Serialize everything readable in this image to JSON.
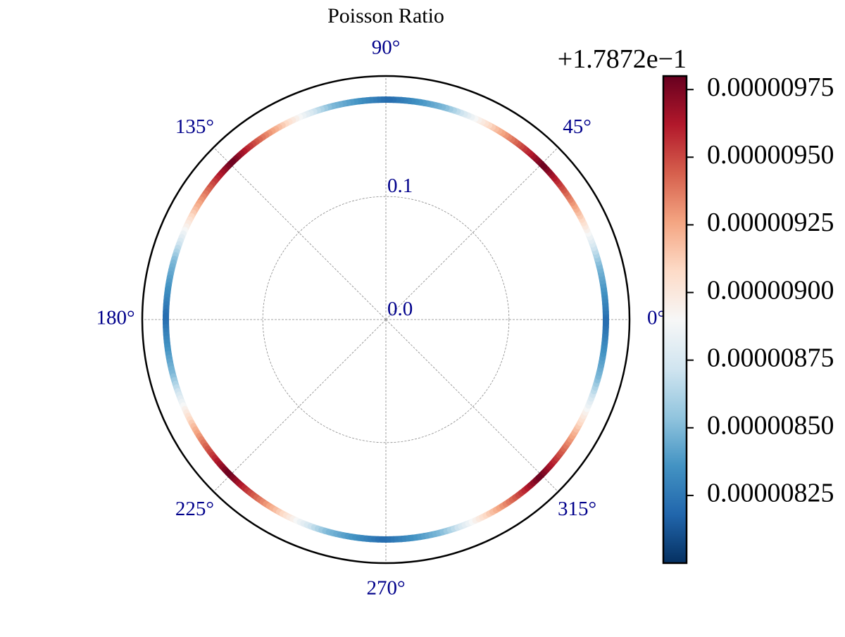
{
  "chart_data": {
    "type": "polar",
    "title": "Poisson Ratio",
    "quantity": "Poisson Ratio",
    "r_ticks": [
      {
        "value": 0.0,
        "label": "0.0"
      },
      {
        "value": 0.1,
        "label": "0.1"
      }
    ],
    "r_max": 0.1979,
    "theta_ticks": [
      {
        "deg": 0,
        "label": "0°"
      },
      {
        "deg": 45,
        "label": "45°"
      },
      {
        "deg": 90,
        "label": "90°"
      },
      {
        "deg": 135,
        "label": "135°"
      },
      {
        "deg": 180,
        "label": "180°"
      },
      {
        "deg": 225,
        "label": "225°"
      },
      {
        "deg": 270,
        "label": "270°"
      },
      {
        "deg": 315,
        "label": "315°"
      }
    ],
    "series": {
      "theta_deg": [
        0,
        15,
        30,
        45,
        60,
        75,
        90,
        105,
        120,
        135,
        150,
        165,
        180,
        195,
        210,
        225,
        240,
        255,
        270,
        285,
        300,
        315,
        330,
        345,
        360
      ],
      "r": [
        0.1787282,
        0.1787285,
        0.1787292,
        0.1787298,
        0.1787292,
        0.1787285,
        0.1787282,
        0.1787285,
        0.1787292,
        0.1787298,
        0.1787292,
        0.1787285,
        0.1787282,
        0.1787285,
        0.1787292,
        0.1787298,
        0.1787292,
        0.1787285,
        0.1787282,
        0.1787285,
        0.1787292,
        0.1787298,
        0.1787292,
        0.1787285,
        0.1787282
      ]
    },
    "colorbar": {
      "colormap": "RdBu_r",
      "offset_label": "+1.7872e−1",
      "offset": 0.17872,
      "vmin": 8e-06,
      "vmax": 9.8e-06,
      "ticks": [
        {
          "value": 8.25e-06,
          "label": "0.00000825"
        },
        {
          "value": 8.5e-06,
          "label": "0.00000850"
        },
        {
          "value": 8.75e-06,
          "label": "0.00000875"
        },
        {
          "value": 9e-06,
          "label": "0.00000900"
        },
        {
          "value": 9.25e-06,
          "label": "0.00000925"
        },
        {
          "value": 9.5e-06,
          "label": "0.00000950"
        },
        {
          "value": 9.75e-06,
          "label": "0.00000975"
        }
      ],
      "stops": [
        "#053061",
        "#2166ac",
        "#4393c3",
        "#92c5de",
        "#d1e5f0",
        "#f7f7f7",
        "#fddbc7",
        "#f4a582",
        "#d6604d",
        "#b2182b",
        "#67001f"
      ]
    },
    "grid": true,
    "tick_label_color": "#00008b"
  }
}
